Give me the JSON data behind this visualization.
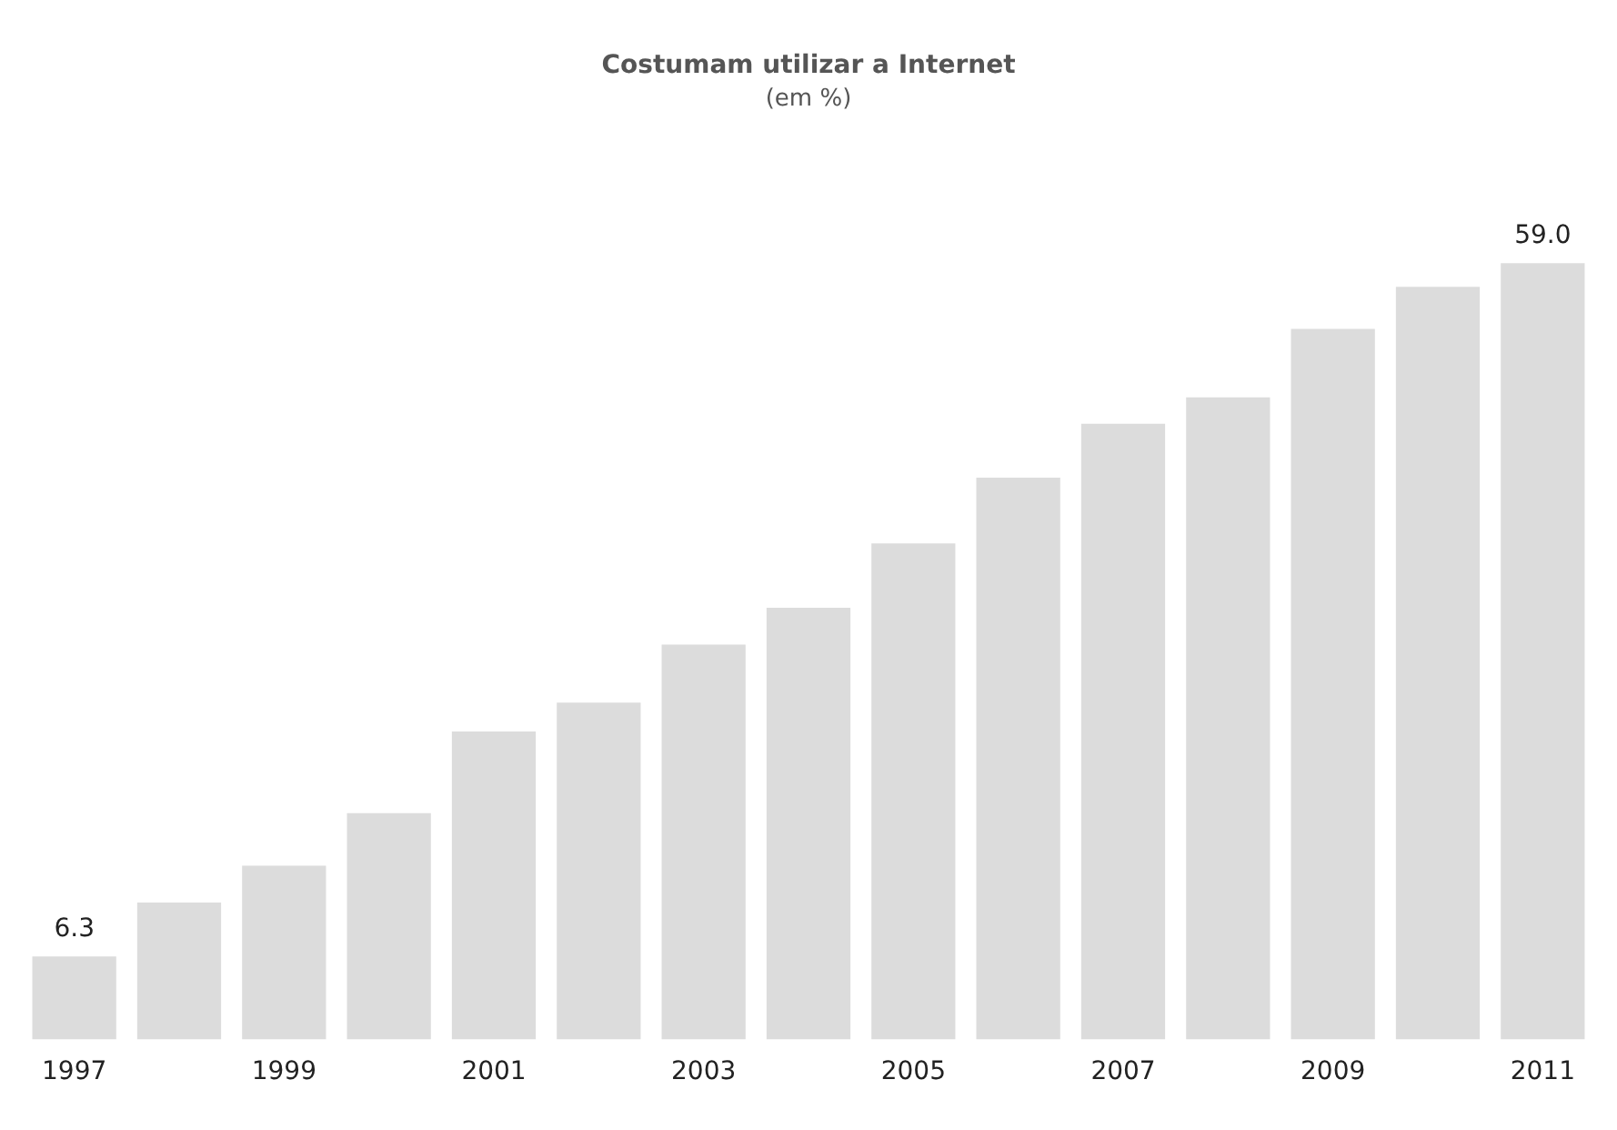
{
  "chart_data": {
    "type": "bar",
    "title": "Costumam utilizar a Internet",
    "subtitle": "(em %)",
    "categories": [
      "1997",
      null,
      "1999",
      null,
      "2001",
      null,
      "2003",
      null,
      "2005",
      null,
      "2007",
      null,
      "2009",
      null,
      "2011"
    ],
    "values": [
      6.3,
      10.4,
      13.2,
      17.2,
      23.4,
      25.6,
      30.0,
      32.8,
      37.7,
      42.7,
      46.8,
      48.8,
      54.0,
      57.2,
      59.0
    ],
    "value_labels": [
      "6.3",
      null,
      null,
      null,
      null,
      null,
      null,
      null,
      null,
      null,
      null,
      null,
      null,
      null,
      "59.0"
    ],
    "color": "#dcdcdc",
    "grid": false,
    "legend": false
  }
}
